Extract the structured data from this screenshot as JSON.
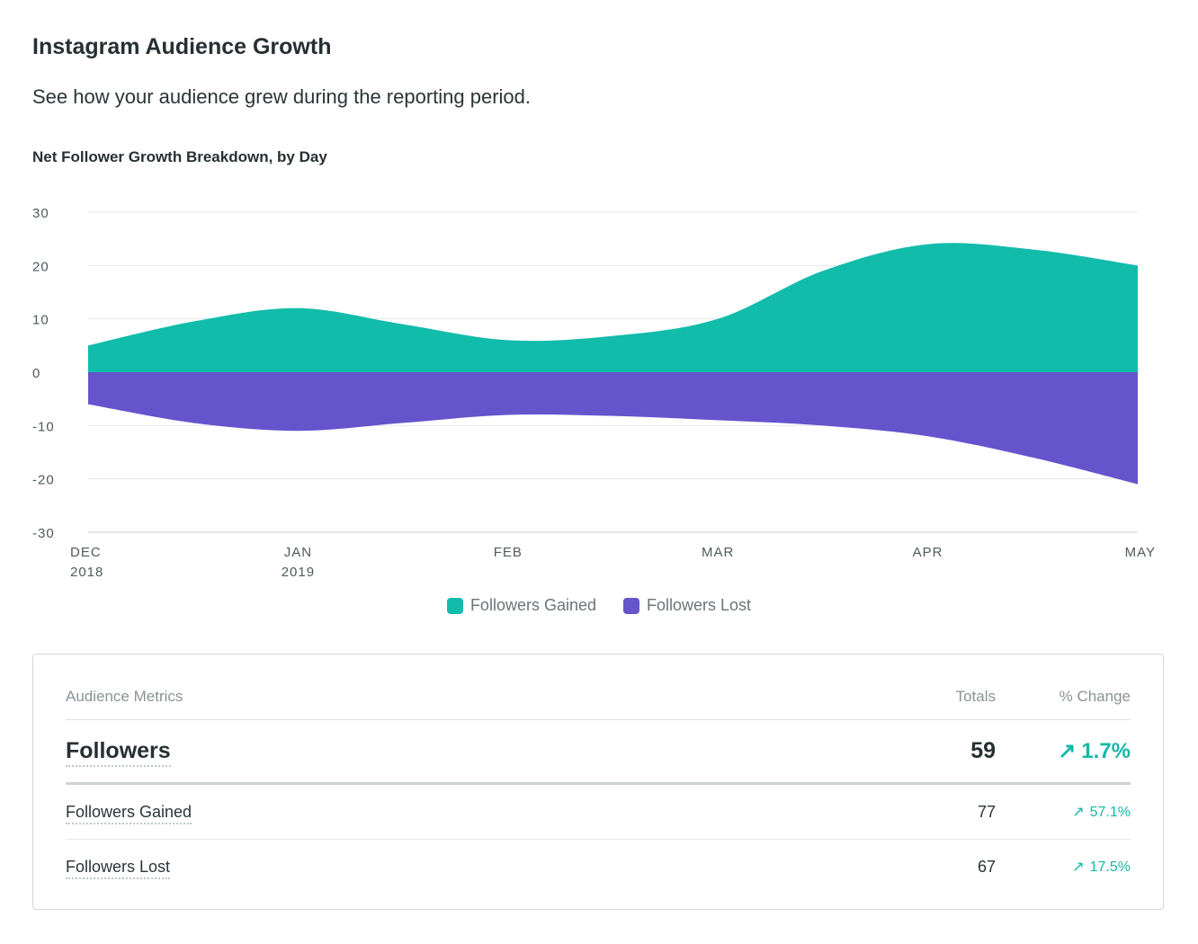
{
  "header": {
    "title": "Instagram Audience Growth",
    "subtitle": "See how your audience grew during the reporting period."
  },
  "chart_data": {
    "type": "area",
    "title": "Net Follower Growth Breakdown, by Day",
    "ylim": [
      -30,
      30
    ],
    "yticks": [
      "30",
      "20",
      "10",
      "0",
      "-10",
      "-20",
      "-30"
    ],
    "ytick_values": [
      30,
      20,
      10,
      0,
      -10,
      -20,
      -30
    ],
    "xticks": [
      {
        "line1": "DEC",
        "line2": "2018",
        "pos": 0
      },
      {
        "line1": "JAN",
        "line2": "2019",
        "pos": 1
      },
      {
        "line1": "FEB",
        "line2": "",
        "pos": 2
      },
      {
        "line1": "MAR",
        "line2": "",
        "pos": 3
      },
      {
        "line1": "APR",
        "line2": "",
        "pos": 4
      },
      {
        "line1": "MAY",
        "line2": "",
        "pos": 5
      }
    ],
    "x": [
      0,
      0.5,
      1,
      1.5,
      2,
      2.5,
      3,
      3.5,
      4,
      4.5,
      5
    ],
    "series": [
      {
        "name": "Followers Gained",
        "color": "#12bcab",
        "values": [
          5,
          9.5,
          12,
          9,
          6,
          6.8,
          10,
          19,
          24,
          23,
          20
        ]
      },
      {
        "name": "Followers Lost",
        "color": "#6554cc",
        "values": [
          -6,
          -9.5,
          -11,
          -9.5,
          -8,
          -8.2,
          -9,
          -10,
          -12,
          -16,
          -21
        ]
      }
    ],
    "legend_position": "bottom-center",
    "grid": true
  },
  "legend": {
    "gained": "Followers Gained",
    "lost": "Followers Lost",
    "gained_color": "#12bcab",
    "lost_color": "#6554cc"
  },
  "metrics": {
    "header": {
      "name": "Audience Metrics",
      "total": "Totals",
      "change": "% Change"
    },
    "rows": [
      {
        "name": "Followers",
        "total": "59",
        "change": "1.7%"
      },
      {
        "name": "Followers Gained",
        "total": "77",
        "change": "57.1%"
      },
      {
        "name": "Followers Lost",
        "total": "67",
        "change": "17.5%"
      }
    ],
    "arrow": "↗"
  }
}
